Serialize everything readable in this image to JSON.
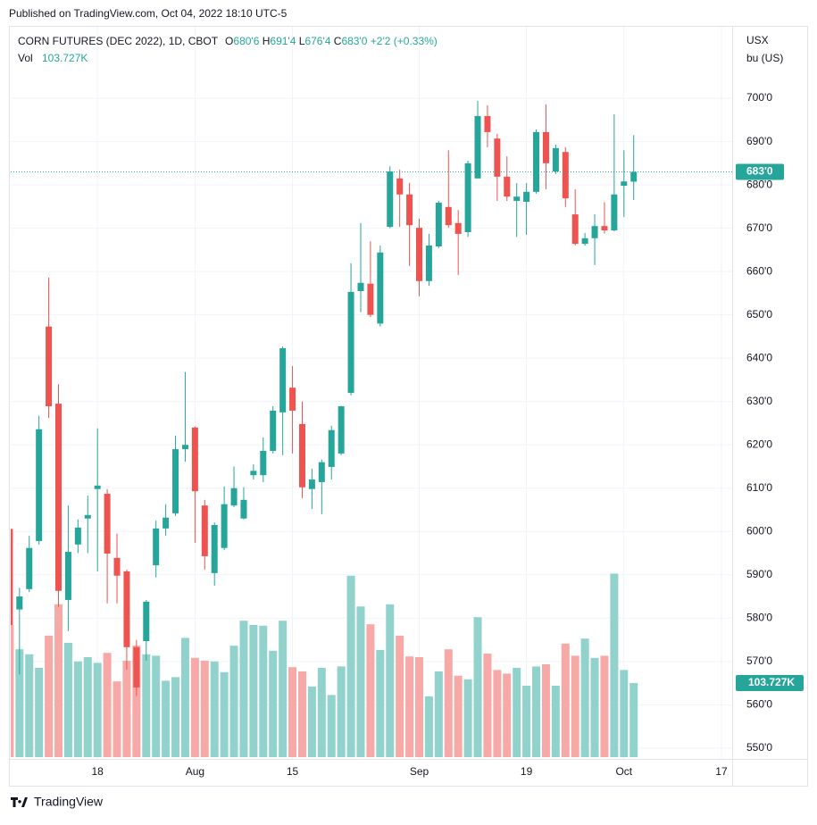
{
  "published": "Published on TradingView.com, Oct 04, 2022 18:10 UTC-5",
  "footer": "TradingView",
  "chart_data": {
    "type": "candlestick",
    "title": "CORN FUTURES (DEC 2022), 1D, CBOT",
    "legend_ohlc": [
      {
        "key": "O",
        "text": "680'6"
      },
      {
        "key": "H",
        "text": "691'4"
      },
      {
        "key": "L",
        "text": "676'4"
      },
      {
        "key": "C",
        "text": "683'0"
      }
    ],
    "change": "+2'2 (+0.33%)",
    "volume_name": "Vol",
    "volume_value_label": "103.727K",
    "currency": "USX",
    "unit": "bu (US)",
    "last_price_label": "683'0",
    "up_color": "#26a69a",
    "down_color": "#ef5350",
    "volume_up_color": "#92d2cc",
    "volume_down_color": "#f7a9a7",
    "grid": true,
    "open": [
      600.6,
      582,
      586.7,
      597.8,
      647.3,
      629.5,
      584.2,
      597,
      603,
      609.8,
      608.7,
      593.9,
      590.8,
      573.3,
      574.7,
      592.2,
      600.7,
      604.2,
      619,
      624,
      606,
      590.4,
      596.2,
      606,
      603,
      613,
      613,
      618.6,
      627.5,
      633.2,
      624.8,
      609.8,
      611.4,
      614.9,
      618,
      632,
      655.5,
      657.2,
      648,
      670.3,
      681.5,
      677.8,
      670.1,
      657.8,
      665.8,
      674.9,
      671.2,
      669.1,
      681.5,
      695.9,
      690.7,
      681.9,
      676.3,
      676.1,
      678.4,
      692.2,
      683.1,
      687.6,
      673.2,
      666.4,
      667.7,
      670.5,
      669.5,
      679.8,
      680.75
    ],
    "high": [
      600.6,
      587,
      599,
      626.7,
      658.6,
      634,
      606,
      602.8,
      608.3,
      623.8,
      609.8,
      599.5,
      591.2,
      575,
      584.2,
      602.5,
      606.3,
      622.1,
      636.8,
      624.2,
      607.3,
      602.1,
      610.4,
      615,
      610.2,
      615.5,
      621.7,
      628.9,
      642.7,
      638.2,
      630,
      614.5,
      616.6,
      624.4,
      629,
      661.9,
      671.2,
      667,
      666,
      684.3,
      683.5,
      680.5,
      672.2,
      668.7,
      676.3,
      688,
      674.2,
      685.6,
      699.4,
      698.4,
      691.8,
      686.6,
      680.4,
      680.4,
      692.8,
      698.6,
      689.3,
      688.7,
      679,
      668.9,
      673.2,
      676,
      696.3,
      688,
      691.5
    ],
    "low": [
      578,
      567,
      586,
      597,
      626.2,
      582.6,
      577,
      595,
      595,
      590.8,
      583.4,
      583.4,
      568.1,
      562,
      570.2,
      589.4,
      599,
      603.6,
      616.1,
      597.4,
      591.2,
      587.5,
      595.7,
      605.6,
      602.8,
      612,
      611.4,
      618,
      617.6,
      618,
      607.7,
      605.2,
      604,
      612,
      617.6,
      631.4,
      650.6,
      649.5,
      647.3,
      670,
      670.3,
      661.3,
      654.3,
      656.7,
      665.4,
      670.1,
      659.2,
      668,
      681.5,
      688.7,
      676.3,
      676.3,
      668,
      668.5,
      678,
      679,
      682.5,
      674.9,
      666,
      666,
      661.5,
      668.8,
      669.3,
      672.6,
      676.5
    ],
    "close": [
      578.4,
      585,
      596.2,
      623.6,
      628.9,
      586.3,
      595.3,
      600.9,
      603.8,
      610.6,
      594.9,
      589.8,
      573.3,
      564,
      583.8,
      600.7,
      603.2,
      619,
      620,
      609.3,
      594.3,
      601.5,
      606.3,
      610,
      607.3,
      614,
      618.6,
      627.9,
      642.3,
      627.9,
      610.2,
      612,
      616,
      623.4,
      628.9,
      655.3,
      657.4,
      650,
      664.4,
      683.1,
      677.8,
      670.7,
      657.8,
      666,
      675.9,
      670.7,
      668.7,
      685,
      695.9,
      692.2,
      681.9,
      677.3,
      677.3,
      678.4,
      692.2,
      685,
      688.5,
      676.9,
      666.4,
      667.7,
      670.5,
      669.5,
      677.8,
      680.8,
      683
    ],
    "volume": [
      185000,
      151000,
      144000,
      125000,
      170000,
      214000,
      160000,
      134000,
      140000,
      132000,
      146000,
      106000,
      135000,
      156000,
      144000,
      142000,
      107000,
      112000,
      167000,
      139000,
      135000,
      134000,
      119000,
      156000,
      191000,
      185000,
      184000,
      149000,
      191000,
      126000,
      120000,
      99000,
      125000,
      87000,
      127000,
      254000,
      211000,
      186000,
      150000,
      214000,
      170000,
      141000,
      140000,
      85000,
      120000,
      151000,
      114000,
      109000,
      196000,
      145000,
      122000,
      117000,
      125000,
      100000,
      127000,
      130000,
      100000,
      159000,
      142000,
      166000,
      139000,
      142000,
      257000,
      122000,
      103727
    ],
    "volume_lim": [
      0,
      330000
    ],
    "xlim": [
      0.1,
      74.1
    ],
    "xticks": [
      {
        "value": 9,
        "label": "18"
      },
      {
        "value": 19,
        "label": "Aug"
      },
      {
        "value": 29,
        "label": "15"
      },
      {
        "value": 42,
        "label": "Sep"
      },
      {
        "value": 53,
        "label": "19"
      },
      {
        "value": 63,
        "label": "Oct"
      },
      {
        "value": 73,
        "label": "17"
      }
    ],
    "ylim": [
      547.5,
      716.5
    ],
    "yticks": [
      {
        "value": 550,
        "label": "550'0"
      },
      {
        "value": 560,
        "label": "560'0"
      },
      {
        "value": 570,
        "label": "570'0"
      },
      {
        "value": 580,
        "label": "580'0"
      },
      {
        "value": 590,
        "label": "590'0"
      },
      {
        "value": 600,
        "label": "600'0"
      },
      {
        "value": 610,
        "label": "610'0"
      },
      {
        "value": 620,
        "label": "620'0"
      },
      {
        "value": 630,
        "label": "630'0"
      },
      {
        "value": 640,
        "label": "640'0"
      },
      {
        "value": 650,
        "label": "650'0"
      },
      {
        "value": 660,
        "label": "660'0"
      },
      {
        "value": 670,
        "label": "670'0"
      },
      {
        "value": 680,
        "label": "680'0"
      },
      {
        "value": 690,
        "label": "690'0"
      },
      {
        "value": 700,
        "label": "700'0"
      }
    ]
  }
}
